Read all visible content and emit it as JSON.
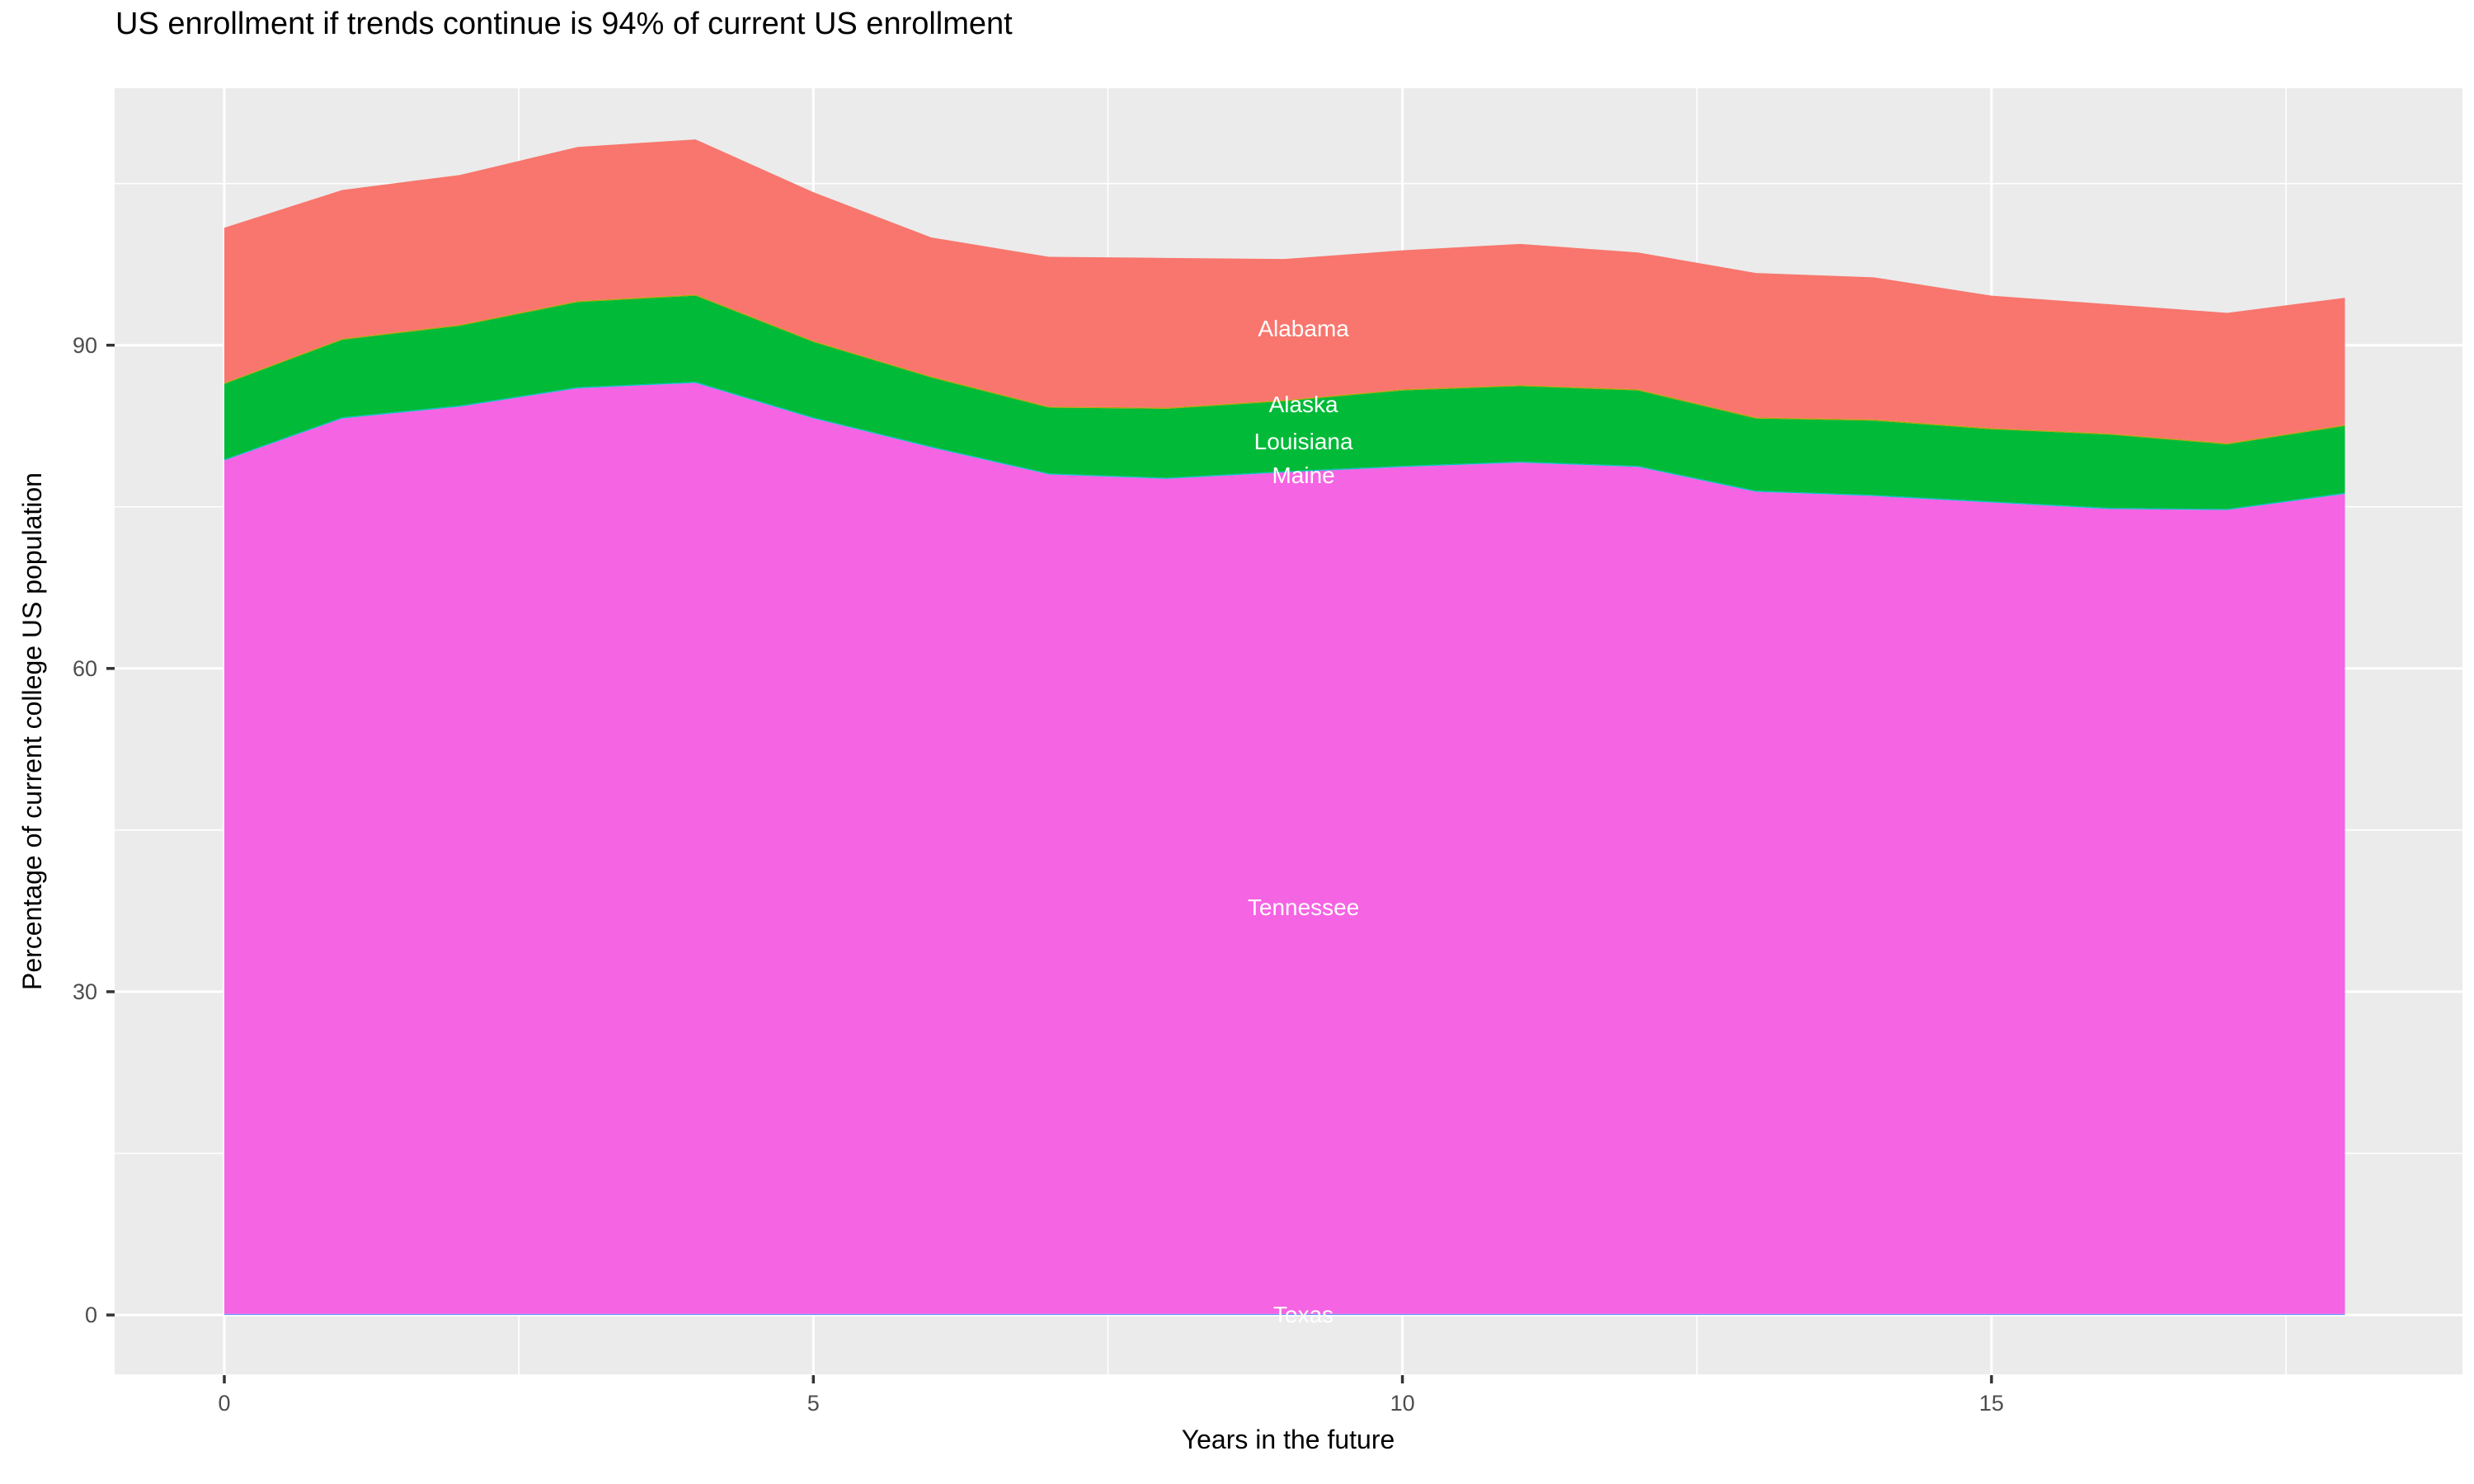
{
  "title": "US enrollment if trends continue is 94% of current US enrollment",
  "x_axis": {
    "label": "Years in the future",
    "ticks": [
      0,
      5,
      10,
      15
    ],
    "minor_ticks": [
      2.5,
      7.5,
      12.5,
      17.5
    ]
  },
  "y_axis": {
    "label": "Percentage of current college US population",
    "ticks": [
      0,
      30,
      60,
      90
    ],
    "minor_ticks": [
      15,
      45,
      75,
      105
    ]
  },
  "style_colors": {
    "panel_background": "#EBEBEB",
    "major_grid": "#FFFFFF",
    "minor_grid": "#FFFFFF",
    "tick_mark": "#333333",
    "tick_text": "#4D4D4D",
    "title_text": "#000000",
    "area_label_text": "#FFFFFF"
  },
  "chart_data": {
    "type": "area",
    "stacked": true,
    "title": "US enrollment if trends continue is 94% of current US enrollment",
    "xlabel": "Years in the future",
    "ylabel": "Percentage of current college US population",
    "xlim": [
      -0.93,
      19.0
    ],
    "ylim": [
      -5.5,
      113.85
    ],
    "grid": true,
    "legend": "none (direct white labels on areas)",
    "x": [
      0,
      1,
      2,
      3,
      4,
      5,
      6,
      7,
      8,
      9,
      10,
      11,
      12,
      13,
      14,
      15,
      16,
      17,
      18
    ],
    "label_year": 9.16,
    "series": [
      {
        "name": "Texas",
        "color": "#619CFF",
        "label_v": 0.0,
        "values": [
          0.1,
          0.1,
          0.1,
          0.1,
          0.1,
          0.1,
          0.1,
          0.1,
          0.1,
          0.1,
          0.1,
          0.1,
          0.1,
          0.1,
          0.1,
          0.1,
          0.1,
          0.1,
          0.1
        ]
      },
      {
        "name": "Tennessee",
        "color": "#F564E3",
        "label_v": 37.8,
        "values": [
          79.2,
          83.1,
          84.2,
          85.9,
          86.4,
          83.1,
          80.4,
          77.9,
          77.5,
          78.1,
          78.6,
          79.0,
          78.6,
          76.3,
          75.9,
          75.3,
          74.7,
          74.6,
          76.1
        ]
      },
      {
        "name": "Maine",
        "color": "#00BFC4",
        "label_v": 77.9,
        "values": [
          0.1,
          0.1,
          0.1,
          0.1,
          0.1,
          0.1,
          0.1,
          0.1,
          0.1,
          0.1,
          0.1,
          0.1,
          0.1,
          0.1,
          0.1,
          0.1,
          0.1,
          0.1,
          0.1
        ]
      },
      {
        "name": "Louisiana",
        "color": "#00BA38",
        "label_v": 81.0,
        "values": [
          7.0,
          7.2,
          7.4,
          7.9,
          8.0,
          7.0,
          6.4,
          6.1,
          6.4,
          6.5,
          7.0,
          7.0,
          7.0,
          6.7,
          6.9,
          6.7,
          6.8,
          6.0,
          6.2
        ]
      },
      {
        "name": "Alaska",
        "color": "#B79F00",
        "label_v": 84.5,
        "values": [
          0.1,
          0.1,
          0.1,
          0.1,
          0.1,
          0.1,
          0.1,
          0.1,
          0.1,
          0.1,
          0.1,
          0.1,
          0.1,
          0.1,
          0.1,
          0.1,
          0.1,
          0.1,
          0.1
        ]
      },
      {
        "name": "Alabama",
        "color": "#F8766D",
        "label_v": 91.5,
        "values": [
          14.4,
          13.8,
          13.9,
          14.3,
          14.4,
          13.8,
          12.9,
          13.9,
          13.9,
          13.1,
          12.9,
          13.1,
          12.7,
          13.4,
          13.2,
          12.3,
          12.0,
          12.1,
          11.8
        ]
      }
    ],
    "stacked_totals": [
      100.9,
      104.4,
      105.8,
      108.4,
      109.1,
      104.2,
      100.0,
      98.2,
      98.1,
      98.0,
      98.8,
      99.4,
      98.6,
      96.7,
      96.3,
      94.6,
      93.8,
      93.0,
      94.4
    ]
  }
}
